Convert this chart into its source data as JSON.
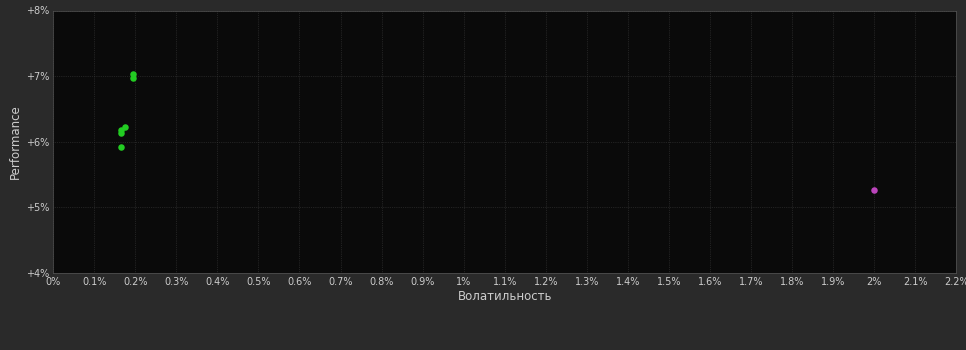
{
  "background_color": "#2a2a2a",
  "plot_bg_color": "#0a0a0a",
  "grid_color": "#3a3a3a",
  "text_color": "#cccccc",
  "xlabel": "Волатильность",
  "ylabel": "Performance",
  "xlim": [
    0.0,
    0.022
  ],
  "ylim": [
    0.04,
    0.08
  ],
  "ytick_values": [
    0.04,
    0.05,
    0.06,
    0.07,
    0.08
  ],
  "green_points": [
    [
      0.00195,
      0.0703
    ],
    [
      0.00195,
      0.0697
    ],
    [
      0.00175,
      0.0622
    ],
    [
      0.00165,
      0.0618
    ],
    [
      0.00165,
      0.0613
    ],
    [
      0.00165,
      0.0592
    ]
  ],
  "magenta_points": [
    [
      0.02,
      0.0527
    ]
  ],
  "green_color": "#22cc22",
  "magenta_color": "#bb44bb",
  "marker_size": 22
}
